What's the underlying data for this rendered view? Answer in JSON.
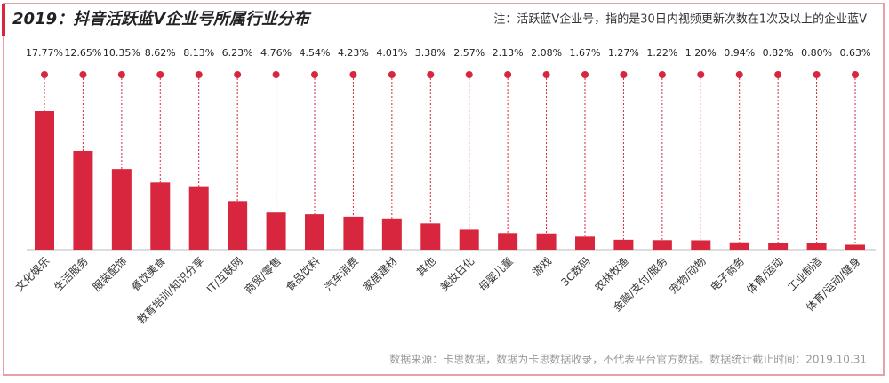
{
  "chart_data": {
    "type": "bar",
    "title": "2019：抖音活跃蓝V企业号所属行业分布",
    "subtitle": "注：活跃蓝V企业号，指的是30日内视频更新次数在1次及以上的企业蓝V",
    "source": "数据来源：卡思数据，数据为卡思数据收录，不代表平台官方数据。数据统计截止时间：2019.10.31",
    "categories": [
      "文化娱乐",
      "生活服务",
      "服装配饰",
      "餐饮美食",
      "教育培训/知识分享",
      "IT/互联网",
      "商贸/零售",
      "食品饮料",
      "汽车消费",
      "家居建材",
      "其他",
      "美妆日化",
      "母婴儿童",
      "游戏",
      "3C数码",
      "农林牧渔",
      "金融/支付/服务",
      "宠物/动物",
      "电子商务",
      "体育/运动",
      "工业制造",
      "体育/运动/健身"
    ],
    "values": [
      17.77,
      12.65,
      10.35,
      8.62,
      8.13,
      6.23,
      4.76,
      4.54,
      4.23,
      4.01,
      3.38,
      2.57,
      2.13,
      2.08,
      1.67,
      1.27,
      1.22,
      1.2,
      0.94,
      0.82,
      0.8,
      0.63
    ],
    "value_labels": [
      "17.77%",
      "12.65%",
      "10.35%",
      "8.62%",
      "8.13%",
      "6.23%",
      "4.76%",
      "4.54%",
      "4.23%",
      "4.01%",
      "3.38%",
      "2.57%",
      "2.13%",
      "2.08%",
      "1.67%",
      "1.27%",
      "1.22%",
      "1.20%",
      "0.94%",
      "0.82%",
      "0.80%",
      "0.63%"
    ],
    "color": "#d7263d"
  }
}
